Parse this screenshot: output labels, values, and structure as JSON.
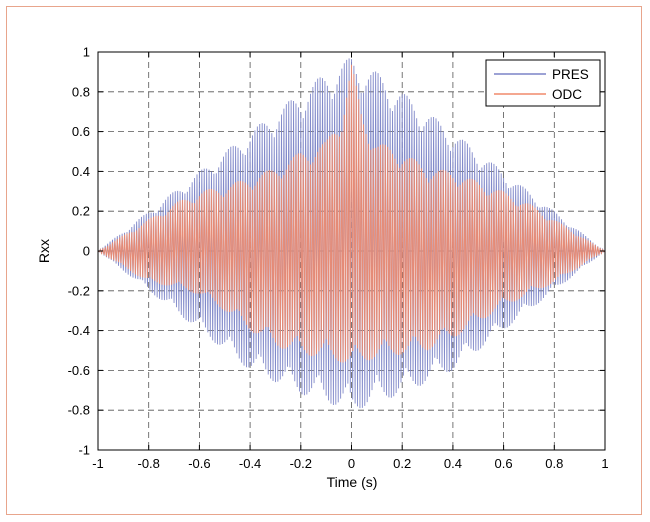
{
  "chart_data": {
    "type": "line",
    "title": "",
    "xlabel": "Time (s)",
    "ylabel": "Rxx",
    "xlim": [
      -1,
      1
    ],
    "ylim": [
      -1,
      1
    ],
    "x_ticks": [
      -1,
      -0.8,
      -0.6,
      -0.4,
      -0.2,
      0,
      0.2,
      0.4,
      0.6,
      0.8,
      1
    ],
    "x_tick_labels": [
      "-1",
      "-0.8",
      "-0.6",
      "-0.4",
      "-0.2",
      "0",
      "0.2",
      "0.4",
      "0.6",
      "0.8",
      "1"
    ],
    "y_ticks": [
      1,
      0.8,
      0.6,
      0.4,
      0.2,
      0,
      -0.2,
      -0.4,
      -0.6,
      -0.8,
      -1
    ],
    "y_tick_labels": [
      "1",
      "0.8",
      "0.6",
      "0.4",
      "0.2",
      "0",
      "-0.2",
      "-0.4",
      "-0.6",
      "-0.8",
      "-1"
    ],
    "grid": true,
    "legend_position": "top-right",
    "series": [
      {
        "name": "PRES",
        "color": "#7b84c7",
        "envelope": {
          "x": [
            -1,
            -0.8,
            -0.6,
            -0.4,
            -0.2,
            -0.1,
            -0.02,
            0,
            0.02,
            0.1,
            0.2,
            0.4,
            0.6,
            0.8,
            1
          ],
          "upper": [
            0,
            0.2,
            0.4,
            0.6,
            0.8,
            0.9,
            0.96,
            0.98,
            0.96,
            0.9,
            0.8,
            0.6,
            0.4,
            0.2,
            0
          ],
          "lower": [
            0,
            -0.2,
            -0.4,
            -0.6,
            -0.72,
            -0.76,
            -0.8,
            -0.82,
            -0.8,
            -0.76,
            -0.72,
            -0.6,
            -0.4,
            -0.2,
            0
          ]
        }
      },
      {
        "name": "ODC",
        "color": "#f08a6c",
        "envelope": {
          "x": [
            -1,
            -0.9,
            -0.8,
            -0.7,
            -0.6,
            -0.5,
            -0.4,
            -0.3,
            -0.2,
            -0.1,
            -0.04,
            0,
            0.04,
            0.1,
            0.2,
            0.3,
            0.4,
            0.5,
            0.6,
            0.7,
            0.8,
            0.9,
            1
          ],
          "upper": [
            0,
            0.08,
            0.16,
            0.24,
            0.3,
            0.33,
            0.37,
            0.42,
            0.5,
            0.55,
            0.7,
            0.95,
            0.7,
            0.55,
            0.5,
            0.42,
            0.4,
            0.35,
            0.3,
            0.24,
            0.16,
            0.08,
            0
          ],
          "lower": [
            0,
            -0.08,
            -0.16,
            -0.18,
            -0.22,
            -0.3,
            -0.4,
            -0.48,
            -0.52,
            -0.54,
            -0.56,
            -0.58,
            -0.56,
            -0.54,
            -0.52,
            -0.5,
            -0.44,
            -0.36,
            -0.28,
            -0.22,
            -0.16,
            -0.08,
            0
          ]
        }
      }
    ]
  }
}
